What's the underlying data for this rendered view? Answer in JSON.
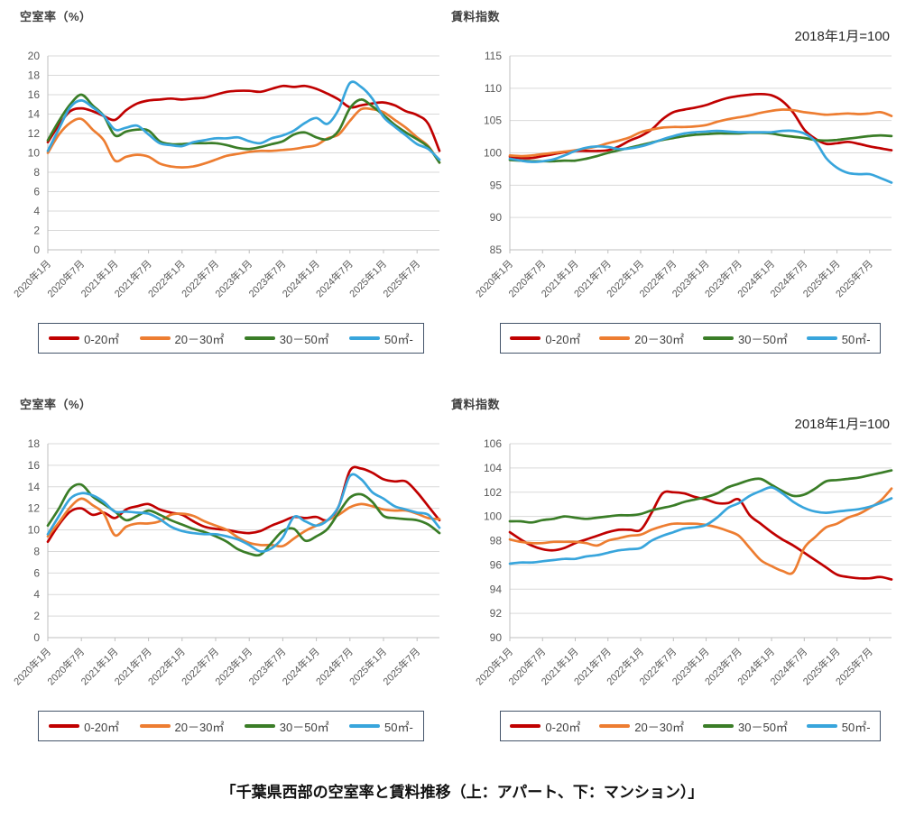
{
  "caption": "「千葉県西部の空室率と賃料推移（上：アパート、下：マンション）」",
  "colors": {
    "red": "#c00000",
    "orange": "#ed7d31",
    "green": "#3a7d27",
    "blue": "#38a5dc",
    "grid": "#d9d9d9",
    "axis": "#bfbfbf",
    "tick_text": "#595959",
    "title_text": "#3f3f3f",
    "legend_border": "#44546a"
  },
  "x_tick_labels": [
    "2020年1月",
    "2020年7月",
    "2021年1月",
    "2021年7月",
    "2022年1月",
    "2022年7月",
    "2023年1月",
    "2023年7月",
    "2024年1月",
    "2024年7月",
    "2025年1月",
    "2025年7月"
  ],
  "x_bimonthly": [
    "2020-01",
    "2020-03",
    "2020-05",
    "2020-07",
    "2020-09",
    "2020-11",
    "2021-01",
    "2021-03",
    "2021-05",
    "2021-07",
    "2021-09",
    "2021-11",
    "2022-01",
    "2022-03",
    "2022-05",
    "2022-07",
    "2022-09",
    "2022-11",
    "2023-01",
    "2023-03",
    "2023-05",
    "2023-07",
    "2023-09",
    "2023-11",
    "2024-01",
    "2024-03",
    "2024-05",
    "2024-07",
    "2024-09",
    "2024-11",
    "2025-01",
    "2025-03",
    "2025-05",
    "2025-07",
    "2025-09",
    "2025-11"
  ],
  "chart_data": [
    {
      "type": "line",
      "id": "apartment-vacancy",
      "title": "空室率（%）",
      "subtitle": null,
      "ylabel": "空室率(%)",
      "ylim": [
        0,
        20
      ],
      "ystep": 2,
      "grid": "horizontal",
      "legend_position": "bottom",
      "series": [
        {
          "name": "0-20㎡",
          "color": "red",
          "values": [
            11.1,
            12.9,
            14.3,
            14.6,
            14.3,
            13.8,
            13.4,
            14.4,
            15.1,
            15.4,
            15.5,
            15.6,
            15.5,
            15.6,
            15.7,
            16.0,
            16.3,
            16.4,
            16.4,
            16.3,
            16.6,
            16.9,
            16.8,
            16.9,
            16.6,
            16.1,
            15.5,
            14.7,
            14.9,
            15.1,
            15.2,
            14.9,
            14.3,
            13.9,
            13.0,
            10.2
          ]
        },
        {
          "name": "20－30㎡",
          "color": "orange",
          "values": [
            10.0,
            11.9,
            13.1,
            13.5,
            12.4,
            11.3,
            9.2,
            9.6,
            9.8,
            9.6,
            8.9,
            8.6,
            8.5,
            8.6,
            8.9,
            9.3,
            9.7,
            9.9,
            10.1,
            10.2,
            10.2,
            10.3,
            10.4,
            10.6,
            10.8,
            11.5,
            11.9,
            13.3,
            14.5,
            14.5,
            14.2,
            13.4,
            12.6,
            11.6,
            10.7,
            9.0
          ]
        },
        {
          "name": "30－50㎡",
          "color": "green",
          "values": [
            11.3,
            13.3,
            15.0,
            16.0,
            14.9,
            13.8,
            11.8,
            12.2,
            12.4,
            12.3,
            11.2,
            10.9,
            10.9,
            11.0,
            11.0,
            11.0,
            10.8,
            10.5,
            10.4,
            10.6,
            10.9,
            11.2,
            11.9,
            12.1,
            11.6,
            11.4,
            12.3,
            14.6,
            15.5,
            14.8,
            13.9,
            12.9,
            12.1,
            11.4,
            10.6,
            9.0
          ]
        },
        {
          "name": "50㎡-",
          "color": "blue",
          "values": [
            10.2,
            12.5,
            14.7,
            15.4,
            14.7,
            13.8,
            12.4,
            12.6,
            12.8,
            11.9,
            11.0,
            10.8,
            10.7,
            11.1,
            11.3,
            11.5,
            11.5,
            11.6,
            11.2,
            11.0,
            11.5,
            11.8,
            12.3,
            13.1,
            13.6,
            13.0,
            14.5,
            17.2,
            16.8,
            15.6,
            13.7,
            12.7,
            11.8,
            10.9,
            10.4,
            9.3
          ]
        }
      ]
    },
    {
      "type": "line",
      "id": "apartment-rent-index",
      "title": "賃料指数",
      "subtitle": "2018年1月=100",
      "ylabel": "賃料指数",
      "ylim": [
        85,
        115
      ],
      "ystep": 5,
      "grid": "horizontal",
      "legend_position": "bottom",
      "series": [
        {
          "name": "0-20㎡",
          "color": "red",
          "values": [
            99.4,
            99.2,
            99.2,
            99.5,
            99.8,
            100.1,
            100.3,
            100.3,
            100.3,
            100.4,
            101.0,
            101.9,
            102.6,
            103.6,
            105.2,
            106.3,
            106.7,
            107.0,
            107.4,
            108.0,
            108.5,
            108.8,
            109.0,
            109.1,
            108.9,
            108.0,
            106.2,
            103.6,
            102.2,
            101.4,
            101.5,
            101.7,
            101.4,
            101.0,
            100.7,
            100.4
          ]
        },
        {
          "name": "20－30㎡",
          "color": "orange",
          "values": [
            99.6,
            99.5,
            99.6,
            99.8,
            100.0,
            100.2,
            100.4,
            100.7,
            101.0,
            101.5,
            101.9,
            102.4,
            103.2,
            103.6,
            103.9,
            104.0,
            104.0,
            104.1,
            104.3,
            104.8,
            105.2,
            105.5,
            105.8,
            106.2,
            106.5,
            106.7,
            106.6,
            106.3,
            106.1,
            105.9,
            106.0,
            106.1,
            106.0,
            106.1,
            106.3,
            105.7
          ]
        },
        {
          "name": "30－50㎡",
          "color": "green",
          "values": [
            98.9,
            98.8,
            98.7,
            98.7,
            98.7,
            98.8,
            98.8,
            99.1,
            99.5,
            100.0,
            100.4,
            100.8,
            101.2,
            101.6,
            102.0,
            102.3,
            102.6,
            102.8,
            102.9,
            103.0,
            103.0,
            103.0,
            103.1,
            103.1,
            103.0,
            102.7,
            102.5,
            102.3,
            102.0,
            101.9,
            102.0,
            102.2,
            102.4,
            102.6,
            102.7,
            102.6
          ]
        },
        {
          "name": "50㎡-",
          "color": "blue",
          "values": [
            99.1,
            98.8,
            98.6,
            98.7,
            99.0,
            99.6,
            100.3,
            100.8,
            101.0,
            100.9,
            100.6,
            100.7,
            101.0,
            101.5,
            102.1,
            102.6,
            103.0,
            103.2,
            103.3,
            103.4,
            103.3,
            103.2,
            103.2,
            103.2,
            103.2,
            103.4,
            103.4,
            103.0,
            101.8,
            99.2,
            97.7,
            96.9,
            96.7,
            96.7,
            96.1,
            95.4
          ]
        }
      ]
    },
    {
      "type": "line",
      "id": "mansion-vacancy",
      "title": "空室率（%）",
      "subtitle": null,
      "ylabel": "空室率(%)",
      "ylim": [
        0,
        18
      ],
      "ystep": 2,
      "grid": "horizontal",
      "legend_position": "bottom",
      "series": [
        {
          "name": "0-20㎡",
          "color": "red",
          "values": [
            8.9,
            10.5,
            11.7,
            12.0,
            11.4,
            11.6,
            11.1,
            11.9,
            12.2,
            12.4,
            11.9,
            11.6,
            11.4,
            10.8,
            10.3,
            10.1,
            10.0,
            9.8,
            9.7,
            9.9,
            10.4,
            10.8,
            11.2,
            11.1,
            11.2,
            10.9,
            12.2,
            15.5,
            15.7,
            15.3,
            14.7,
            14.5,
            14.5,
            13.5,
            12.2,
            10.9
          ]
        },
        {
          "name": "20－30㎡",
          "color": "orange",
          "values": [
            9.4,
            10.7,
            12.1,
            12.9,
            12.3,
            11.5,
            9.5,
            10.3,
            10.6,
            10.6,
            10.8,
            11.4,
            11.5,
            11.3,
            10.8,
            10.4,
            10.0,
            9.3,
            8.8,
            8.6,
            8.6,
            8.5,
            9.2,
            9.9,
            10.4,
            10.9,
            11.4,
            12.1,
            12.4,
            12.2,
            11.9,
            11.8,
            11.8,
            11.5,
            11.1,
            11.0
          ]
        },
        {
          "name": "30－50㎡",
          "color": "green",
          "values": [
            10.4,
            12.0,
            13.8,
            14.2,
            13.1,
            12.4,
            11.7,
            10.9,
            11.3,
            11.8,
            11.4,
            10.9,
            10.5,
            10.1,
            9.8,
            9.4,
            8.9,
            8.2,
            7.8,
            7.7,
            8.8,
            9.9,
            10.1,
            9.0,
            9.4,
            10.1,
            11.6,
            13.0,
            13.3,
            12.6,
            11.3,
            11.1,
            11.0,
            10.9,
            10.5,
            9.7
          ]
        },
        {
          "name": "50㎡-",
          "color": "blue",
          "values": [
            9.6,
            11.3,
            12.9,
            13.4,
            13.2,
            12.6,
            11.7,
            11.7,
            11.6,
            11.5,
            11.0,
            10.3,
            9.9,
            9.7,
            9.6,
            9.6,
            9.4,
            9.1,
            8.6,
            8.0,
            8.3,
            9.3,
            11.2,
            10.8,
            10.4,
            10.9,
            12.2,
            15.0,
            14.7,
            13.5,
            12.9,
            12.2,
            11.9,
            11.6,
            11.4,
            10.2
          ]
        }
      ]
    },
    {
      "type": "line",
      "id": "mansion-rent-index",
      "title": "賃料指数",
      "subtitle": "2018年1月=100",
      "ylabel": "賃料指数",
      "ylim": [
        90,
        106
      ],
      "ystep": 2,
      "grid": "horizontal",
      "legend_position": "bottom",
      "series": [
        {
          "name": "0-20㎡",
          "color": "red",
          "values": [
            98.7,
            98.1,
            97.6,
            97.3,
            97.2,
            97.4,
            97.8,
            98.1,
            98.4,
            98.7,
            98.9,
            98.9,
            98.9,
            100.3,
            101.9,
            102.0,
            101.9,
            101.6,
            101.4,
            101.1,
            101.1,
            101.4,
            100.1,
            99.4,
            98.7,
            98.1,
            97.6,
            97.0,
            96.4,
            95.8,
            95.2,
            95.0,
            94.9,
            94.9,
            95.0,
            94.8
          ]
        },
        {
          "name": "20－30㎡",
          "color": "orange",
          "values": [
            98.1,
            97.9,
            97.8,
            97.8,
            97.9,
            97.9,
            97.9,
            97.8,
            97.6,
            98.0,
            98.2,
            98.4,
            98.5,
            98.9,
            99.2,
            99.4,
            99.4,
            99.4,
            99.3,
            99.1,
            98.8,
            98.4,
            97.4,
            96.4,
            95.9,
            95.5,
            95.4,
            97.4,
            98.3,
            99.1,
            99.4,
            99.9,
            100.2,
            100.7,
            101.3,
            102.3
          ]
        },
        {
          "name": "30－50㎡",
          "color": "green",
          "values": [
            99.6,
            99.6,
            99.5,
            99.7,
            99.8,
            100.0,
            99.9,
            99.8,
            99.9,
            100.0,
            100.1,
            100.1,
            100.2,
            100.5,
            100.7,
            100.9,
            101.2,
            101.4,
            101.6,
            101.9,
            102.4,
            102.7,
            103.0,
            103.1,
            102.6,
            102.1,
            101.7,
            101.8,
            102.3,
            102.9,
            103.0,
            103.1,
            103.2,
            103.4,
            103.6,
            103.8
          ]
        },
        {
          "name": "50㎡-",
          "color": "blue",
          "values": [
            96.1,
            96.2,
            96.2,
            96.3,
            96.4,
            96.5,
            96.5,
            96.7,
            96.8,
            97.0,
            97.2,
            97.3,
            97.4,
            98.0,
            98.4,
            98.7,
            99.0,
            99.1,
            99.3,
            99.9,
            100.7,
            101.1,
            101.7,
            102.1,
            102.4,
            101.9,
            101.2,
            100.7,
            100.4,
            100.3,
            100.4,
            100.5,
            100.6,
            100.8,
            101.1,
            101.5
          ]
        }
      ]
    }
  ]
}
